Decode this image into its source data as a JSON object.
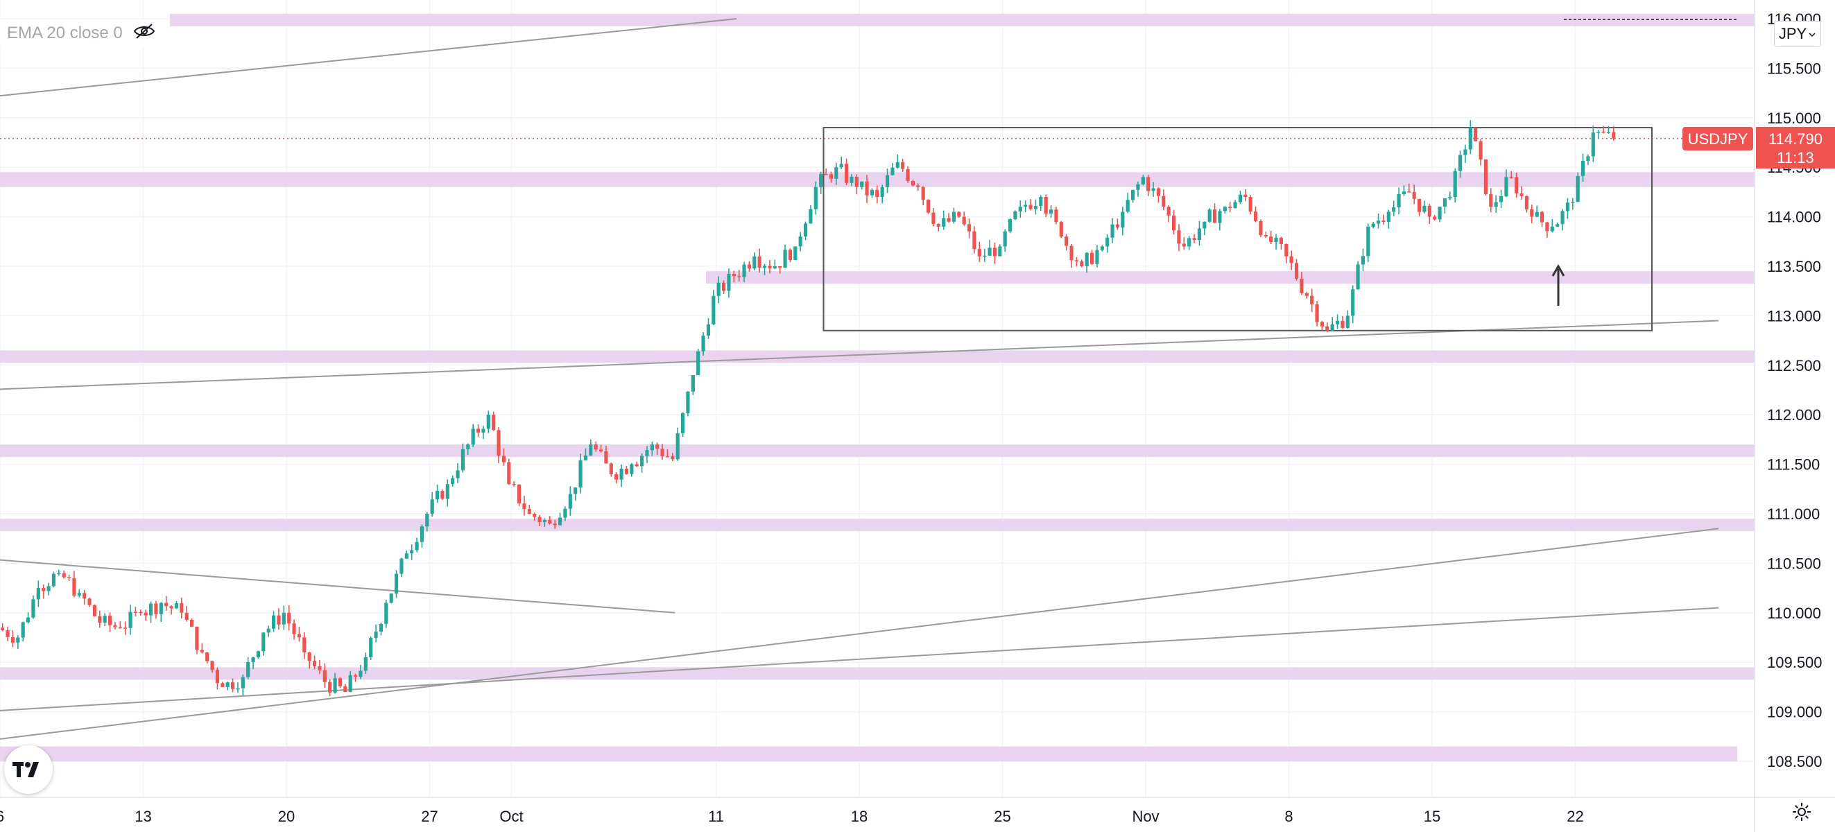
{
  "legend": {
    "text": "EMA 20 close 0",
    "icon": "eye-crossed-icon"
  },
  "currency": {
    "label": "JPY",
    "icon": "chevron-down-icon"
  },
  "symbol": {
    "name": "USDJPY",
    "price": "114.790",
    "countdown": "11:13"
  },
  "colors": {
    "up": "#26a69a",
    "down": "#ef5350",
    "zone": "#e8d4ee",
    "trendline": "#9a9a9a",
    "box": "#555555",
    "grid": "#f0f3fa",
    "price_line": "#ef5350"
  },
  "chart_data": {
    "type": "candlestick",
    "symbol": "USDJPY",
    "currency": "JPY",
    "indicator": "EMA 20 close 0",
    "y_axis": {
      "range": [
        108.2,
        116.2
      ],
      "ticks": [
        "116.000",
        "115.500",
        "115.000",
        "114.500",
        "114.000",
        "113.500",
        "113.000",
        "112.500",
        "112.000",
        "111.500",
        "111.000",
        "110.500",
        "110.000",
        "109.500",
        "109.000",
        "108.500"
      ]
    },
    "x_axis": {
      "range_days": [
        "Sep 5",
        "Nov 29"
      ],
      "ticks": [
        "6",
        "13",
        "20",
        "27",
        "Oct",
        "11",
        "18",
        "25",
        "Nov",
        "8",
        "15",
        "22"
      ]
    },
    "path": [
      [
        "Sep 6",
        109.85
      ],
      [
        "Sep 7",
        109.75
      ],
      [
        "Sep 8",
        110.25
      ],
      [
        "Sep 9",
        110.4
      ],
      [
        "Sep 10",
        110.2
      ],
      [
        "Sep 11",
        109.9
      ],
      [
        "Sep 12",
        109.85
      ],
      [
        "Sep 13",
        110.0
      ],
      [
        "Sep 14",
        110.1
      ],
      [
        "Sep 15",
        110.0
      ],
      [
        "Sep 16",
        109.6
      ],
      [
        "Sep 17",
        109.25
      ],
      [
        "Sep 18",
        109.35
      ],
      [
        "Sep 19",
        109.8
      ],
      [
        "Sep 20",
        110.0
      ],
      [
        "Sep 21",
        109.6
      ],
      [
        "Sep 22",
        109.3
      ],
      [
        "Sep 23",
        109.2
      ],
      [
        "Sep 24",
        109.55
      ],
      [
        "Sep 25",
        110.1
      ],
      [
        "Sep 26",
        110.6
      ],
      [
        "Sep 27",
        111.0
      ],
      [
        "Sep 28",
        111.3
      ],
      [
        "Sep 29",
        111.7
      ],
      [
        "Sep 30",
        112.0
      ],
      [
        "Oct 1",
        111.3
      ],
      [
        "Oct 2",
        111.0
      ],
      [
        "Oct 3",
        110.9
      ],
      [
        "Oct 4",
        111.2
      ],
      [
        "Oct 5",
        111.7
      ],
      [
        "Oct 6",
        111.4
      ],
      [
        "Oct 7",
        111.5
      ],
      [
        "Oct 8",
        111.7
      ],
      [
        "Oct 9",
        111.55
      ],
      [
        "Oct 10",
        112.4
      ],
      [
        "Oct 11",
        113.2
      ],
      [
        "Oct 12",
        113.4
      ],
      [
        "Oct 13",
        113.6
      ],
      [
        "Oct 14",
        113.5
      ],
      [
        "Oct 15",
        113.7
      ],
      [
        "Oct 16",
        114.3
      ],
      [
        "Oct 17",
        114.5
      ],
      [
        "Oct 18",
        114.3
      ],
      [
        "Oct 19",
        114.2
      ],
      [
        "Oct 20",
        114.55
      ],
      [
        "Oct 21",
        114.3
      ],
      [
        "Oct 22",
        113.9
      ],
      [
        "Oct 23",
        114.0
      ],
      [
        "Oct 24",
        113.6
      ],
      [
        "Oct 25",
        113.7
      ],
      [
        "Oct 26",
        114.1
      ],
      [
        "Oct 27",
        114.2
      ],
      [
        "Oct 28",
        113.8
      ],
      [
        "Oct 29",
        113.5
      ],
      [
        "Oct 30",
        113.7
      ],
      [
        "Oct 31",
        114.05
      ],
      [
        "Nov 1",
        114.4
      ],
      [
        "Nov 2",
        114.1
      ],
      [
        "Nov 3",
        113.7
      ],
      [
        "Nov 4",
        113.95
      ],
      [
        "Nov 5",
        114.1
      ],
      [
        "Nov 6",
        114.2
      ],
      [
        "Nov 7",
        113.8
      ],
      [
        "Nov 8",
        113.6
      ],
      [
        "Nov 9",
        113.2
      ],
      [
        "Nov 10",
        112.85
      ],
      [
        "Nov 11",
        113.0
      ],
      [
        "Nov 12",
        113.9
      ],
      [
        "Nov 13",
        114.05
      ],
      [
        "Nov 14",
        114.25
      ],
      [
        "Nov 15",
        114.0
      ],
      [
        "Nov 16",
        114.2
      ],
      [
        "Nov 17",
        114.9
      ],
      [
        "Nov 18",
        114.1
      ],
      [
        "Nov 19",
        114.4
      ],
      [
        "Nov 20",
        114.0
      ],
      [
        "Nov 21",
        113.9
      ],
      [
        "Nov 22",
        114.15
      ],
      [
        "Nov 23",
        114.85
      ],
      [
        "Nov 24",
        114.79
      ]
    ],
    "last_price": 114.79,
    "zones": [
      [
        115.95,
        116.05
      ],
      [
        114.3,
        114.45
      ],
      [
        113.35,
        113.45
      ],
      [
        112.55,
        112.65
      ],
      [
        111.6,
        111.7
      ],
      [
        110.85,
        110.95
      ],
      [
        109.35,
        109.45
      ],
      [
        108.5,
        108.65
      ]
    ],
    "trendlines": [
      [
        [
          "Sep 5",
          115.2
        ],
        [
          "Oct 12",
          116.0
        ]
      ],
      [
        [
          "Sep 5",
          112.25
        ],
        [
          "Nov 29",
          112.95
        ]
      ],
      [
        [
          "Sep 5",
          110.55
        ],
        [
          "Oct 9",
          110.0
        ]
      ],
      [
        [
          "Sep 5",
          108.7
        ],
        [
          "Nov 29",
          110.85
        ]
      ],
      [
        [
          "Sep 5",
          109.0
        ],
        [
          "Nov 29",
          110.05
        ]
      ]
    ],
    "range_box": {
      "from": "Oct 17",
      "to": "Nov 25",
      "low": 112.85,
      "high": 114.9
    },
    "arrow": {
      "date": "Nov 21",
      "from": 113.1,
      "to": 113.5
    }
  }
}
